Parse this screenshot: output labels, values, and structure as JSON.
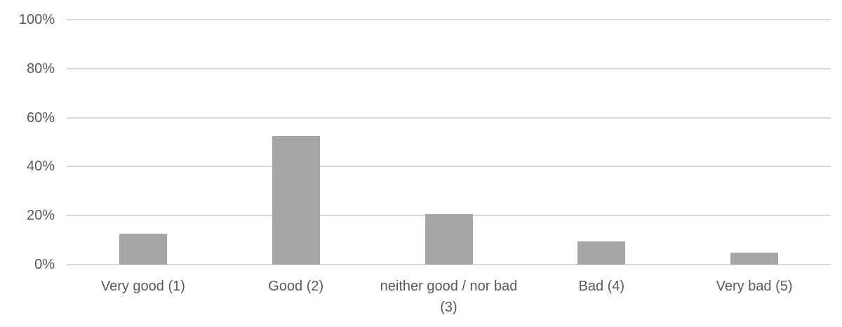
{
  "chart_data": {
    "type": "bar",
    "categories": [
      "Very good (1)",
      "Good (2)",
      "neither good / nor bad (3)",
      "Bad (4)",
      "Very bad (5)"
    ],
    "values": [
      12.5,
      52.5,
      20.5,
      9.5,
      5.0
    ],
    "unit": "%",
    "title": "",
    "xlabel": "",
    "ylabel": "",
    "ylim": [
      0,
      100
    ],
    "ytick_step": 20,
    "ytick_labels": [
      "0%",
      "20%",
      "40%",
      "60%",
      "80%",
      "100%"
    ],
    "grid": true,
    "legend": false,
    "bar_color": "#a6a6a6",
    "gridline_color": "#d9d9d9",
    "axis_line_color": "#d9d9d9",
    "text_color": "#595959",
    "background_color": "#ffffff"
  }
}
